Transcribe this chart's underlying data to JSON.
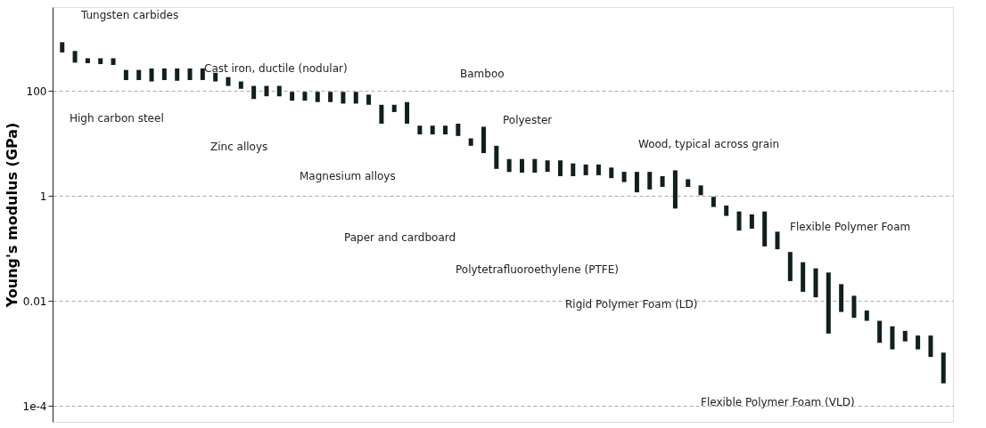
{
  "chart_data": {
    "type": "bar",
    "ylabel": "Young's modulus (GPa)",
    "categories": [
      null,
      null,
      null,
      null,
      null,
      null,
      null,
      null,
      null,
      null,
      null,
      null,
      null,
      null,
      null,
      null,
      null,
      null,
      null,
      null,
      null,
      null,
      null,
      null,
      null,
      null,
      null,
      null,
      null,
      null,
      null,
      null,
      null,
      null,
      null,
      null,
      null,
      null,
      null,
      null,
      null,
      null,
      null,
      null,
      null,
      null,
      null,
      null,
      null,
      null,
      null,
      null,
      null,
      null,
      null,
      null,
      null,
      null,
      null,
      null,
      null,
      null,
      null,
      null,
      null,
      null,
      null,
      null,
      null,
      null
    ],
    "base": [
      548,
      350,
      342,
      328,
      316,
      163,
      163,
      153,
      163,
      158,
      163,
      163,
      153,
      126,
      111,
      71,
      80,
      80,
      66,
      66,
      62,
      62,
      58,
      58,
      55,
      24,
      40,
      24,
      15,
      15,
      15,
      14,
      9.1,
      6.6,
      3.3,
      2.9,
      2.8,
      2.8,
      2.9,
      2.4,
      2.4,
      2.5,
      2.5,
      2.2,
      1.85,
      1.18,
      1.34,
      1.5,
      0.58,
      1.5,
      1.04,
      0.62,
      0.42,
      0.22,
      0.24,
      0.11,
      0.097,
      0.024,
      0.015,
      0.0118,
      0.0024,
      0.0062,
      0.0048,
      0.0042,
      0.0016,
      0.0012,
      0.0017,
      0.0012,
      0.00086,
      0.00027
    ],
    "values": [
      310,
      234,
      82,
      96,
      108,
      91,
      91,
      118,
      108,
      113,
      108,
      108,
      71,
      59,
      42,
      55,
      46,
      46,
      31,
      31,
      35,
      35,
      39,
      39,
      31,
      31,
      15,
      38,
      7,
      7,
      7,
      10,
      3.5,
      14.4,
      5.8,
      2.2,
      2.3,
      2.3,
      1.9,
      2.4,
      1.8,
      1.5,
      1.5,
      1.3,
      1.05,
      1.72,
      1.56,
      0.9,
      2.52,
      0.6,
      0.56,
      0.35,
      0.24,
      0.29,
      0.21,
      0.4,
      0.113,
      0.062,
      0.04,
      0.0302,
      0.0326,
      0.0148,
      0.0078,
      0.0024,
      0.0026,
      0.0021,
      0.001,
      0.001,
      0.00134,
      0.00077
    ],
    "color": "#10201a",
    "log": true,
    "ylim": [
      5e-05,
      4000
    ],
    "yticks": [
      {
        "value": 0.0001,
        "label": "1e-4"
      },
      0.01,
      1,
      100
    ],
    "grid": "y",
    "tick_labels": "y",
    "annotations": [
      "Tungsten carbides",
      "Cast iron, ductile (nodular)",
      "High carbon steel",
      "Zinc alloys",
      "Bamboo",
      "Magnesium alloys",
      "Polyester",
      "Wood, typical across grain",
      "Paper and cardboard",
      "Polytetrafluoroethylene (PTFE)",
      "Flexible Polymer Foam",
      "Rigid Polymer Foam (LD)",
      "Flexible Polymer Foam (VLD)"
    ]
  }
}
